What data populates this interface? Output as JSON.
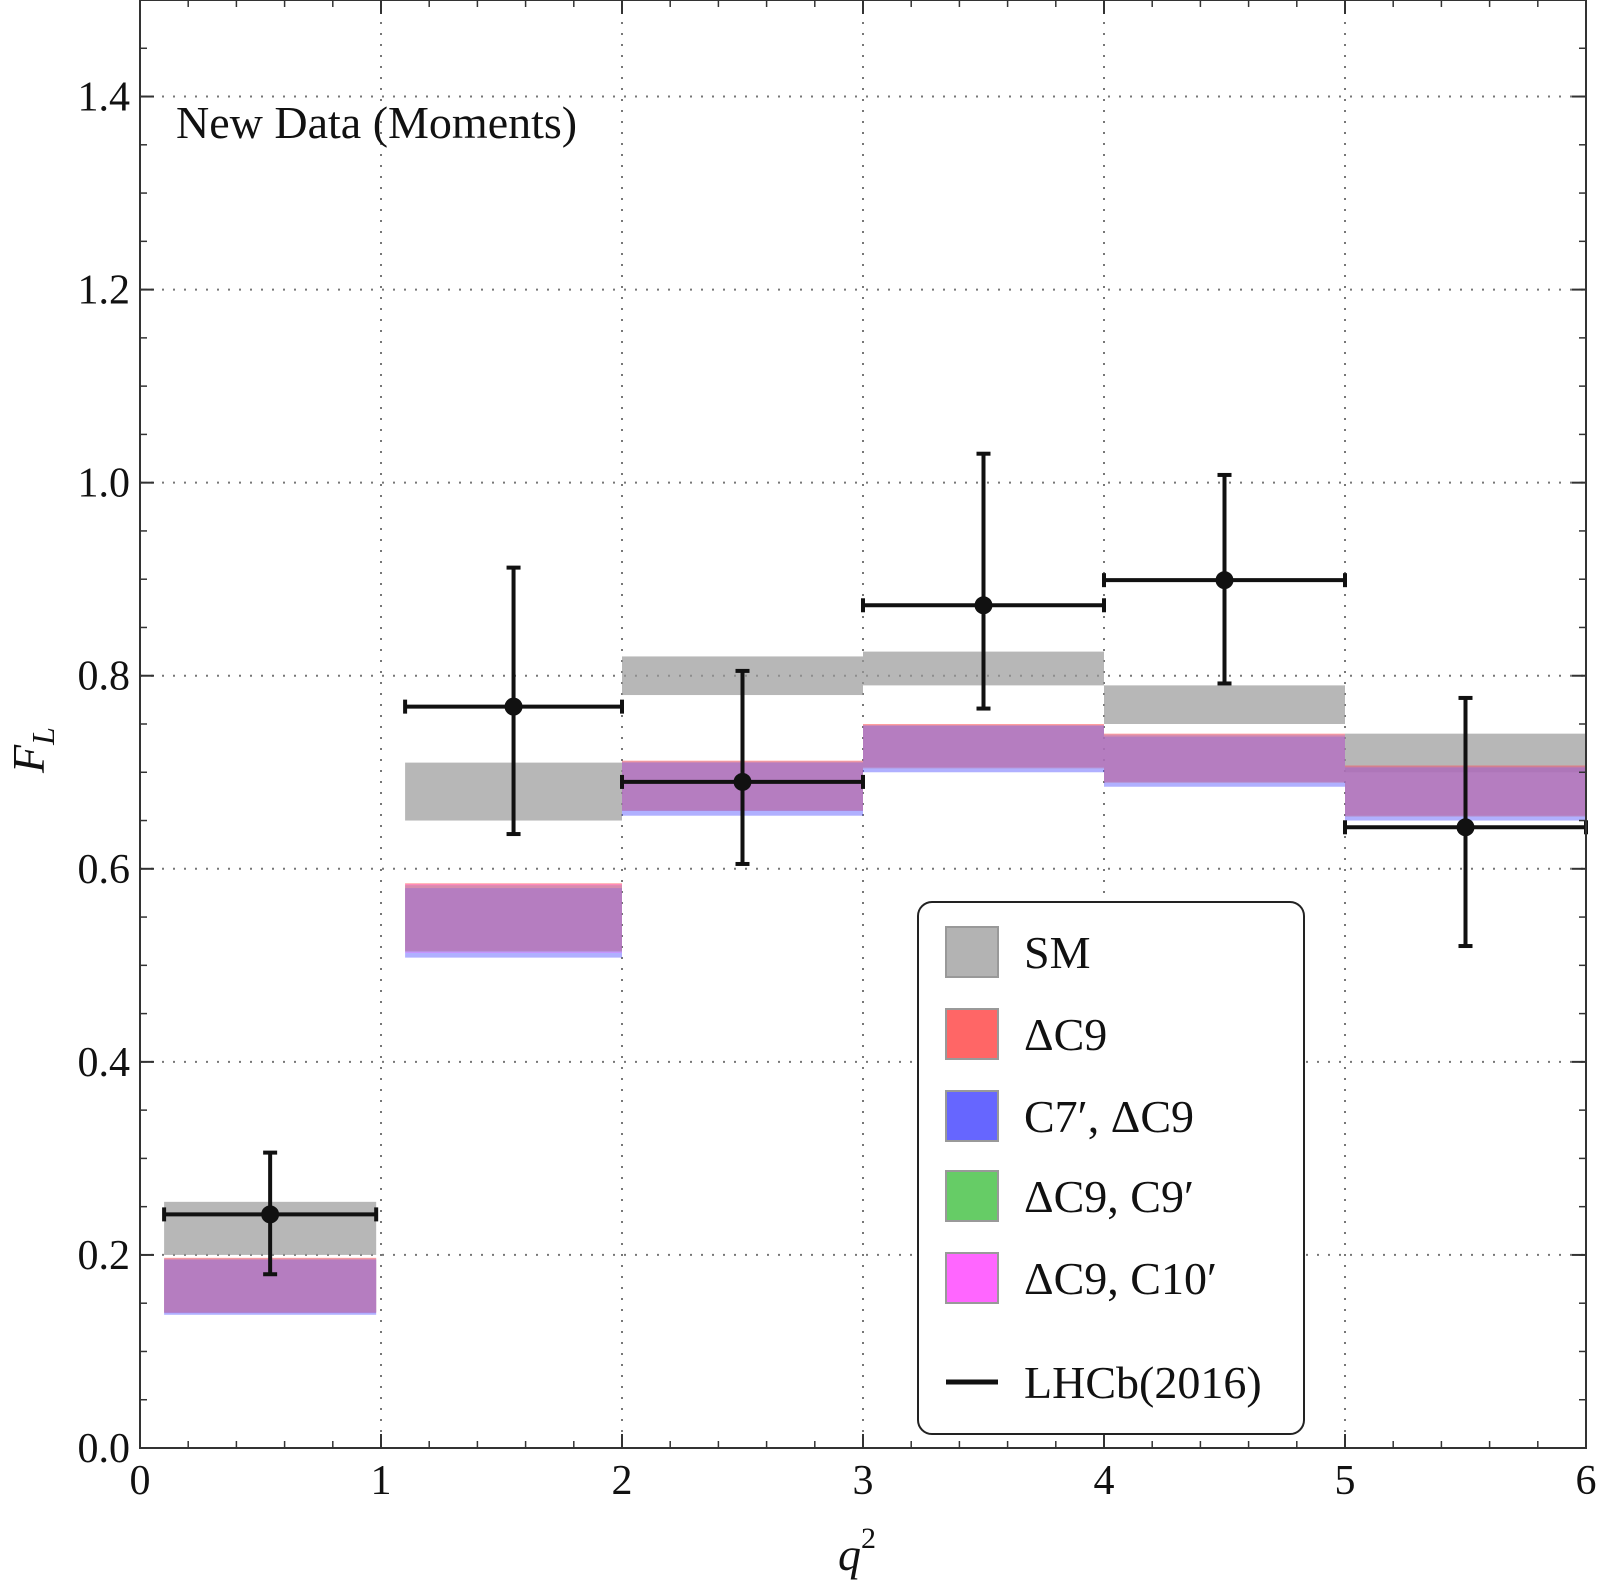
{
  "chart_data": {
    "type": "bar",
    "title": "",
    "annotation": "New Data (Moments)",
    "xlabel": "q",
    "xlabel_sup": "2",
    "ylabel": "F",
    "ylabel_sub": "L",
    "xlim": [
      0,
      6
    ],
    "ylim": [
      0,
      1.5
    ],
    "x_ticks": [
      "0",
      "1",
      "2",
      "3",
      "4",
      "5",
      "6"
    ],
    "y_ticks": [
      "0.0",
      "0.2",
      "0.4",
      "0.6",
      "0.8",
      "1.0",
      "1.2",
      "1.4"
    ],
    "grid": true,
    "legend_position": "bottom-right",
    "bins": [
      [
        0.1,
        0.98
      ],
      [
        1.1,
        2.0
      ],
      [
        2.0,
        3.0
      ],
      [
        3.0,
        4.0
      ],
      [
        4.0,
        5.0
      ],
      [
        5.0,
        6.0
      ]
    ],
    "series": [
      {
        "name": "SM",
        "color": "#999999",
        "low": [
          0.2,
          0.65,
          0.78,
          0.79,
          0.75,
          0.7
        ],
        "high": [
          0.255,
          0.71,
          0.82,
          0.825,
          0.79,
          0.74
        ]
      },
      {
        "name": "ΔC9",
        "color": "#ff5050",
        "low": [
          0.14,
          0.515,
          0.66,
          0.705,
          0.69,
          0.655
        ],
        "high": [
          0.197,
          0.585,
          0.712,
          0.75,
          0.74,
          0.707
        ]
      },
      {
        "name": "C7′, ΔC9",
        "color": "#5050ff",
        "low": [
          0.138,
          0.508,
          0.655,
          0.7,
          0.685,
          0.65
        ],
        "high": [
          0.195,
          0.58,
          0.71,
          0.748,
          0.737,
          0.705
        ]
      },
      {
        "name": "ΔC9, C9′",
        "color": "#50c850",
        "low": [
          0.141,
          0.514,
          0.661,
          0.704,
          0.689,
          0.654
        ],
        "high": [
          0.196,
          0.583,
          0.711,
          0.749,
          0.739,
          0.706
        ]
      },
      {
        "name": "ΔC9, C10′",
        "color": "#ff50ff",
        "low": [
          0.141,
          0.513,
          0.661,
          0.704,
          0.689,
          0.654
        ],
        "high": [
          0.196,
          0.584,
          0.711,
          0.749,
          0.739,
          0.706
        ]
      }
    ],
    "data_points": {
      "name": "LHCb(2016)",
      "color": "#111111",
      "points": [
        {
          "x": 0.54,
          "xlo": 0.1,
          "xhi": 0.98,
          "y": 0.242,
          "ylo": 0.18,
          "yhi": 0.306
        },
        {
          "x": 1.55,
          "xlo": 1.1,
          "xhi": 2.0,
          "y": 0.768,
          "ylo": 0.636,
          "yhi": 0.912
        },
        {
          "x": 2.5,
          "xlo": 2.0,
          "xhi": 3.0,
          "y": 0.69,
          "ylo": 0.605,
          "yhi": 0.805
        },
        {
          "x": 3.5,
          "xlo": 3.0,
          "xhi": 4.0,
          "y": 0.873,
          "ylo": 0.766,
          "yhi": 1.03
        },
        {
          "x": 4.5,
          "xlo": 4.0,
          "xhi": 5.0,
          "y": 0.899,
          "ylo": 0.792,
          "yhi": 1.008
        },
        {
          "x": 5.5,
          "xlo": 5.0,
          "xhi": 6.0,
          "y": 0.643,
          "ylo": 0.52,
          "yhi": 0.777
        }
      ]
    },
    "legend": [
      {
        "label": "SM",
        "color": "#b3b3b3",
        "kind": "box"
      },
      {
        "label": "ΔC9",
        "color": "#ff6666",
        "kind": "box"
      },
      {
        "label": "C7′, ΔC9",
        "color": "#6666ff",
        "kind": "box"
      },
      {
        "label": "ΔC9, C9′",
        "color": "#66cc66",
        "kind": "box"
      },
      {
        "label": "ΔC9, C10′",
        "color": "#ff66ff",
        "kind": "box"
      },
      {
        "label": "LHCb(2016)",
        "color": "#111111",
        "kind": "line"
      }
    ]
  }
}
